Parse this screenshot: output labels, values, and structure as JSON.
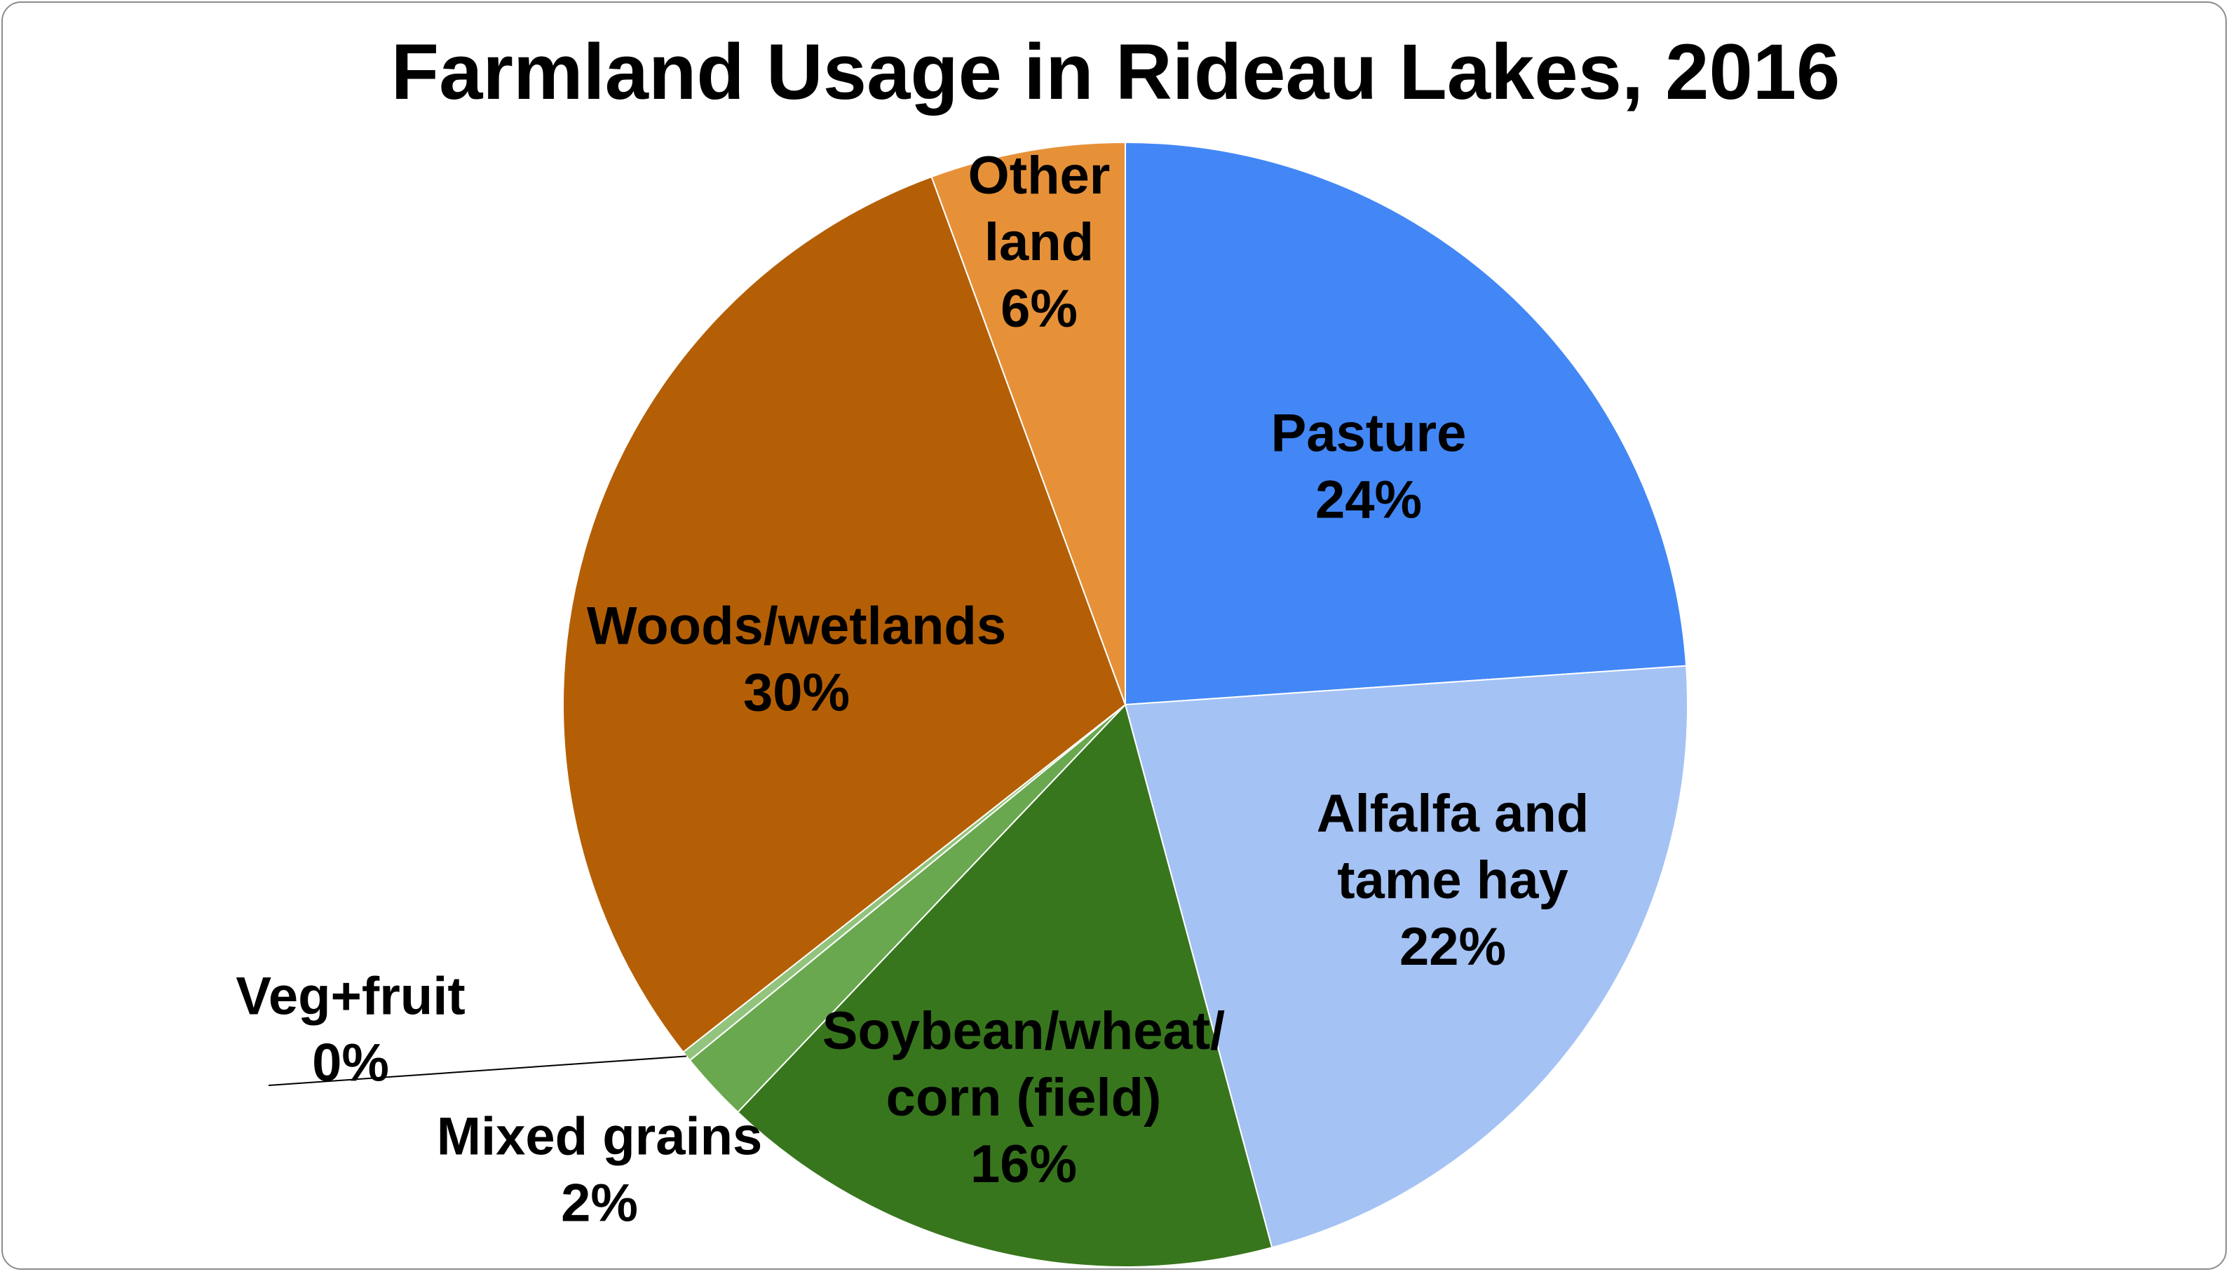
{
  "chart_data": {
    "type": "pie",
    "title": "Farmland Usage in Rideau Lakes, 2016",
    "start_angle": "12 o'clock",
    "direction": "clockwise",
    "label_style": "category name and percent inside slices",
    "slices": [
      {
        "name": "Pasture",
        "label_lines": [
          "Pasture"
        ],
        "percent_label": "24%",
        "value": 23.9,
        "color": "#4287f5"
      },
      {
        "name": "Alfalfa and tame hay",
        "label_lines": [
          "Alfalfa and",
          "tame hay"
        ],
        "percent_label": "22%",
        "value": 21.9,
        "color": "#a4c2f4"
      },
      {
        "name": "Soybean/wheat/corn (field)",
        "label_lines": [
          "Soybean/wheat/",
          "corn (field)"
        ],
        "percent_label": "16%",
        "value": 16.3,
        "color": "#38761d"
      },
      {
        "name": "Mixed grains",
        "label_lines": [
          "Mixed grains"
        ],
        "percent_label": "2%",
        "value": 2.0,
        "color": "#6aa84f"
      },
      {
        "name": "Veg+fruit",
        "label_lines": [
          "Veg+fruit"
        ],
        "percent_label": "0%",
        "value": 0.3,
        "color": "#93c47d"
      },
      {
        "name": "Woods/wetlands",
        "label_lines": [
          "Woods/wetlands"
        ],
        "percent_label": "30%",
        "value": 30.0,
        "color": "#b45f06"
      },
      {
        "name": "Other land",
        "label_lines": [
          "Other",
          "land"
        ],
        "percent_label": "6%",
        "value": 5.6,
        "color": "#e69138"
      }
    ]
  }
}
